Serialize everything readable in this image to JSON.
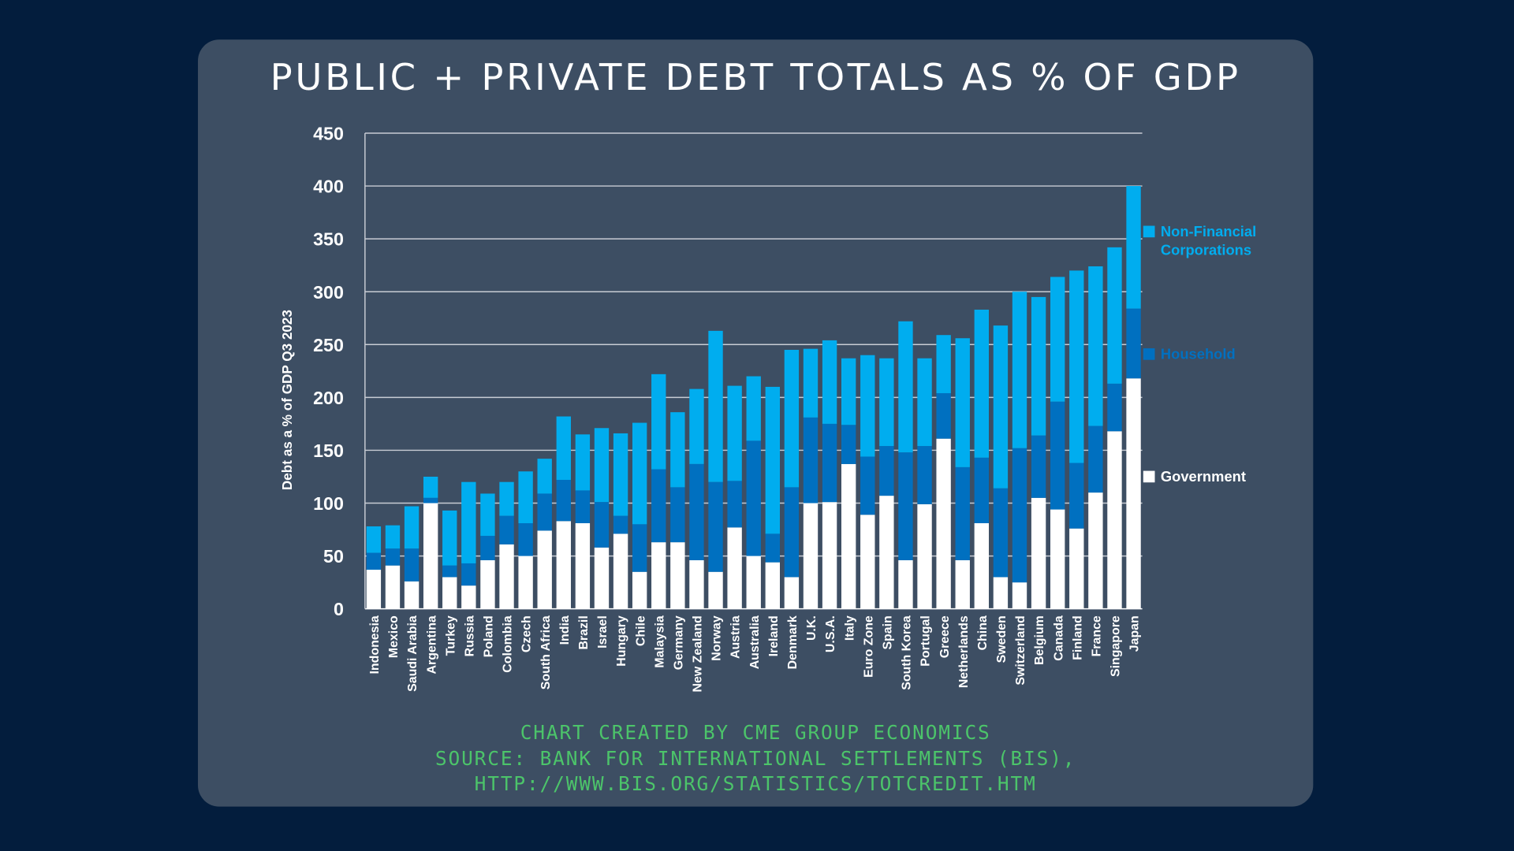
{
  "title": "PUBLIC + PRIVATE DEBT TOTALS AS % OF GDP",
  "footer": [
    "CHART CREATED BY CME GROUP ECONOMICS",
    "SOURCE: BANK FOR INTERNATIONAL SETTLEMENTS (BIS),",
    "HTTP://WWW.BIS.ORG/STATISTICS/TOTCREDIT.HTM"
  ],
  "colors": {
    "background": "#031d3d",
    "panel": "#3d4e63",
    "government": "#ffffff",
    "household": "#0070c0",
    "nfc": "#00adef",
    "footer": "#4cc46a"
  },
  "chart_data": {
    "type": "bar",
    "stacked": true,
    "title": "PUBLIC + PRIVATE DEBT TOTALS AS % OF GDP",
    "xlabel": "",
    "ylabel": "Debt as a % of GDP Q3 2023",
    "ylim": [
      0,
      450
    ],
    "yticks": [
      0,
      50,
      100,
      150,
      200,
      250,
      300,
      350,
      400,
      450
    ],
    "grid": true,
    "legend_placement": "right",
    "categories": [
      "Indonesia",
      "Mexico",
      "Saudi Arabia",
      "Argentina",
      "Turkey",
      "Russia",
      "Poland",
      "Colombia",
      "Czech",
      "South Africa",
      "India",
      "Brazil",
      "Israel",
      "Hungary",
      "Chile",
      "Malaysia",
      "Germany",
      "New Zealand",
      "Norway",
      "Austria",
      "Australia",
      "Ireland",
      "Denmark",
      "U.K.",
      "U.S.A.",
      "Italy",
      "Euro Zone",
      "Spain",
      "South Korea",
      "Portugal",
      "Greece",
      "Netherlands",
      "China",
      "Sweden",
      "Switzerland",
      "Belgium",
      "Canada",
      "Finland",
      "France",
      "Singapore",
      "Japan"
    ],
    "series": [
      {
        "name": "Government",
        "color": "#ffffff",
        "values": [
          37,
          41,
          26,
          100,
          30,
          22,
          46,
          61,
          50,
          74,
          83,
          81,
          58,
          71,
          35,
          63,
          63,
          46,
          35,
          77,
          50,
          44,
          30,
          100,
          101,
          137,
          89,
          107,
          46,
          99,
          161,
          46,
          81,
          30,
          25,
          105,
          94,
          76,
          110,
          168,
          218
        ]
      },
      {
        "name": "Household",
        "color": "#0070c0",
        "values": [
          16,
          16,
          31,
          5,
          11,
          21,
          23,
          27,
          31,
          35,
          39,
          31,
          43,
          17,
          45,
          69,
          52,
          91,
          85,
          44,
          109,
          27,
          85,
          81,
          74,
          37,
          55,
          47,
          102,
          55,
          43,
          88,
          62,
          84,
          127,
          59,
          102,
          62,
          63,
          45,
          66
        ]
      },
      {
        "name": "Non-Financial Corporations",
        "color": "#00adef",
        "values": [
          25,
          22,
          40,
          20,
          52,
          77,
          40,
          32,
          49,
          33,
          60,
          53,
          70,
          78,
          96,
          90,
          71,
          71,
          143,
          90,
          61,
          139,
          130,
          65,
          79,
          63,
          96,
          83,
          124,
          83,
          55,
          122,
          140,
          154,
          148,
          131,
          118,
          182,
          151,
          129,
          116
        ]
      }
    ],
    "legend": [
      "Non-Financial Corporations",
      "Household",
      "Government"
    ]
  }
}
